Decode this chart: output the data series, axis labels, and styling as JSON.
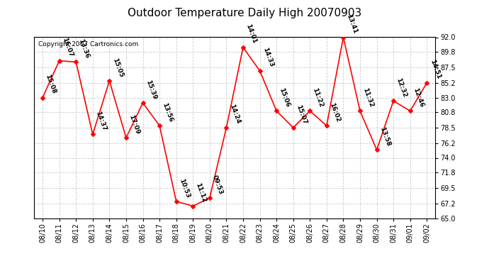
{
  "title": "Outdoor Temperature Daily High 20070903",
  "copyright": "Copyright 2007 Cartronics.com",
  "background_color": "#ffffff",
  "plot_background": "#ffffff",
  "grid_color": "#cccccc",
  "line_color": "#ff0000",
  "marker_color": "#ff0000",
  "marker_style": "D",
  "marker_size": 3,
  "dates": [
    "08/10",
    "08/11",
    "08/12",
    "08/13",
    "08/14",
    "08/15",
    "08/16",
    "08/17",
    "08/18",
    "08/19",
    "08/20",
    "08/21",
    "08/22",
    "08/23",
    "08/24",
    "08/25",
    "08/26",
    "08/27",
    "08/28",
    "08/29",
    "08/30",
    "08/31",
    "09/01",
    "09/02"
  ],
  "values": [
    83.0,
    88.5,
    88.3,
    77.5,
    85.5,
    77.0,
    82.2,
    78.8,
    67.5,
    66.8,
    68.0,
    78.5,
    90.5,
    87.0,
    81.0,
    78.5,
    81.0,
    78.8,
    92.0,
    81.0,
    75.2,
    82.5,
    81.0,
    85.2
  ],
  "times": [
    "15:08",
    "16:07",
    "13:36",
    "14:37",
    "15:05",
    "17:09",
    "15:39",
    "13:56",
    "10:53",
    "11:12",
    "09:53",
    "14:24",
    "14:01",
    "14:33",
    "15:06",
    "15:07",
    "11:22",
    "16:02",
    "13:41",
    "11:32",
    "13:58",
    "12:32",
    "12:46",
    "14:51"
  ],
  "ylim": [
    65.0,
    92.0
  ],
  "yticks": [
    65.0,
    67.2,
    69.5,
    71.8,
    74.0,
    76.2,
    78.5,
    80.8,
    83.0,
    85.2,
    87.5,
    89.8,
    92.0
  ],
  "title_fontsize": 11,
  "label_fontsize": 6.5,
  "tick_fontsize": 7,
  "copyright_fontsize": 6.5
}
